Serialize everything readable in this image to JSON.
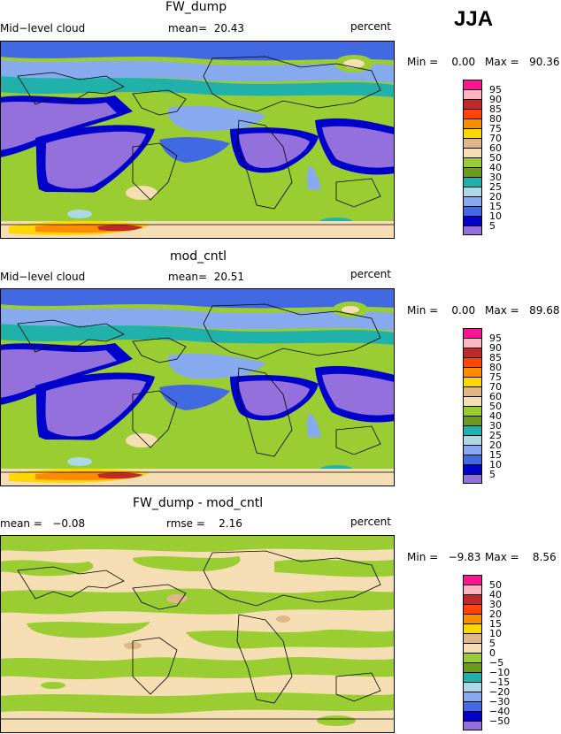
{
  "season": "JJA",
  "panels": [
    {
      "title": "FW_dump",
      "field": "Mid−level cloud",
      "stat": "mean=  20.43",
      "unit": "percent",
      "min_label": "Min =    0.00",
      "max_label": "Max =   90.36"
    },
    {
      "title": "mod_cntl",
      "field": "Mid−level cloud",
      "stat": "mean=  20.51",
      "unit": "percent",
      "min_label": "Min =    0.00",
      "max_label": "Max =   89.68"
    },
    {
      "title": "FW_dump - mod_cntl",
      "field": "mean =   −0.08",
      "stat": "rmse =    2.16",
      "unit": "percent",
      "min_label": "Min =   −9.83",
      "max_label": "Max =    8.56"
    }
  ],
  "colorbars": {
    "cloud": {
      "labels": [
        "95",
        "90",
        "85",
        "80",
        "75",
        "70",
        "60",
        "50",
        "40",
        "30",
        "25",
        "20",
        "15",
        "10",
        "5"
      ],
      "colors": [
        "#ff1493",
        "#ffb6c1",
        "#c0282a",
        "#ff4500",
        "#ff8c00",
        "#ffd700",
        "#deb887",
        "#f5deb3",
        "#9acd32",
        "#6b9b1f",
        "#20b2aa",
        "#add8e6",
        "#87aaee",
        "#4169e1",
        "#0000cd",
        "#9370db"
      ]
    },
    "diff": {
      "labels": [
        "50",
        "40",
        "30",
        "20",
        "15",
        "10",
        "5",
        "0",
        "−5",
        "−10",
        "−15",
        "−20",
        "−30",
        "−40",
        "−50"
      ],
      "colors": [
        "#ff1493",
        "#ffb6c1",
        "#c0282a",
        "#ff4500",
        "#ff8c00",
        "#ffd700",
        "#deb887",
        "#f5deb3",
        "#9acd32",
        "#6b9b1f",
        "#20b2aa",
        "#add8e6",
        "#87aaee",
        "#4169e1",
        "#0000cd",
        "#9370db"
      ]
    }
  }
}
